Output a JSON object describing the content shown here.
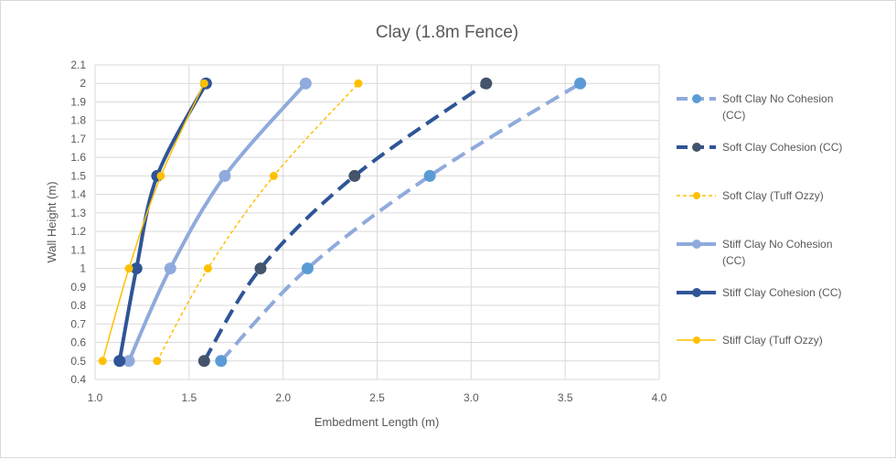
{
  "chart_data": {
    "type": "line",
    "title": "Clay (1.8m Fence)",
    "xlabel": "Embedment Length (m)",
    "ylabel": "Wall Height (m)",
    "xlim": [
      1.0,
      4.0
    ],
    "ylim": [
      0.4,
      2.1
    ],
    "x_ticks": [
      "1.0",
      "1.5",
      "2.0",
      "2.5",
      "3.0",
      "3.5",
      "4.0"
    ],
    "y_ticks": [
      "0.4",
      "0.5",
      "0.6",
      "0.7",
      "0.8",
      "0.9",
      "1",
      "1.1",
      "1.2",
      "1.3",
      "1.4",
      "1.5",
      "1.6",
      "1.7",
      "1.8",
      "1.9",
      "2",
      "2.1"
    ],
    "grid": "vertical and horizontal",
    "legend_position": "right",
    "series": [
      {
        "name": "Soft Clay No Cohesion (CC)",
        "name_lines": [
          "Soft Clay No Cohesion",
          "(CC)"
        ],
        "x": [
          1.67,
          2.13,
          2.78,
          3.58
        ],
        "y": [
          0.5,
          1.0,
          1.5,
          2.0
        ],
        "color": "#8faadc",
        "marker_color": "#5b9bd5",
        "dash": "long-dash",
        "width": 4,
        "marker_size": 6
      },
      {
        "name": "Soft Clay Cohesion (CC)",
        "name_lines": [
          "Soft Clay Cohesion (CC)"
        ],
        "x": [
          1.58,
          1.88,
          2.38,
          3.08
        ],
        "y": [
          0.5,
          1.0,
          1.5,
          2.0
        ],
        "color": "#2f5597",
        "marker_color": "#44546a",
        "dash": "long-dash",
        "width": 4,
        "marker_size": 6
      },
      {
        "name": "Soft Clay (Tuff Ozzy)",
        "name_lines": [
          "Soft Clay (Tuff Ozzy)"
        ],
        "x": [
          1.33,
          1.6,
          1.95,
          2.4
        ],
        "y": [
          0.5,
          1.0,
          1.5,
          2.0
        ],
        "color": "#ffc000",
        "marker_color": "#ffc000",
        "dash": "short-dash",
        "width": 1.5,
        "marker_size": 4
      },
      {
        "name": "Stiff Clay No Cohesion (CC)",
        "name_lines": [
          "Stiff Clay No Cohesion",
          "(CC)"
        ],
        "x": [
          1.18,
          1.4,
          1.69,
          2.12
        ],
        "y": [
          0.5,
          1.0,
          1.5,
          2.0
        ],
        "color": "#8faadc",
        "marker_color": "#8faadc",
        "dash": "solid",
        "width": 4,
        "marker_size": 6
      },
      {
        "name": "Stiff Clay Cohesion (CC)",
        "name_lines": [
          "Stiff Clay Cohesion (CC)"
        ],
        "x": [
          1.13,
          1.22,
          1.33,
          1.59
        ],
        "y": [
          0.5,
          1.0,
          1.5,
          2.0
        ],
        "color": "#2f5597",
        "marker_color": "#2f5597",
        "dash": "solid",
        "width": 4,
        "marker_size": 6
      },
      {
        "name": "Stiff Clay (Tuff Ozzy)",
        "name_lines": [
          "Stiff Clay (Tuff Ozzy)"
        ],
        "x": [
          1.04,
          1.18,
          1.35,
          1.58
        ],
        "y": [
          0.5,
          1.0,
          1.5,
          2.0
        ],
        "color": "#ffc000",
        "marker_color": "#ffc000",
        "dash": "solid",
        "width": 1.5,
        "marker_size": 4
      }
    ]
  }
}
